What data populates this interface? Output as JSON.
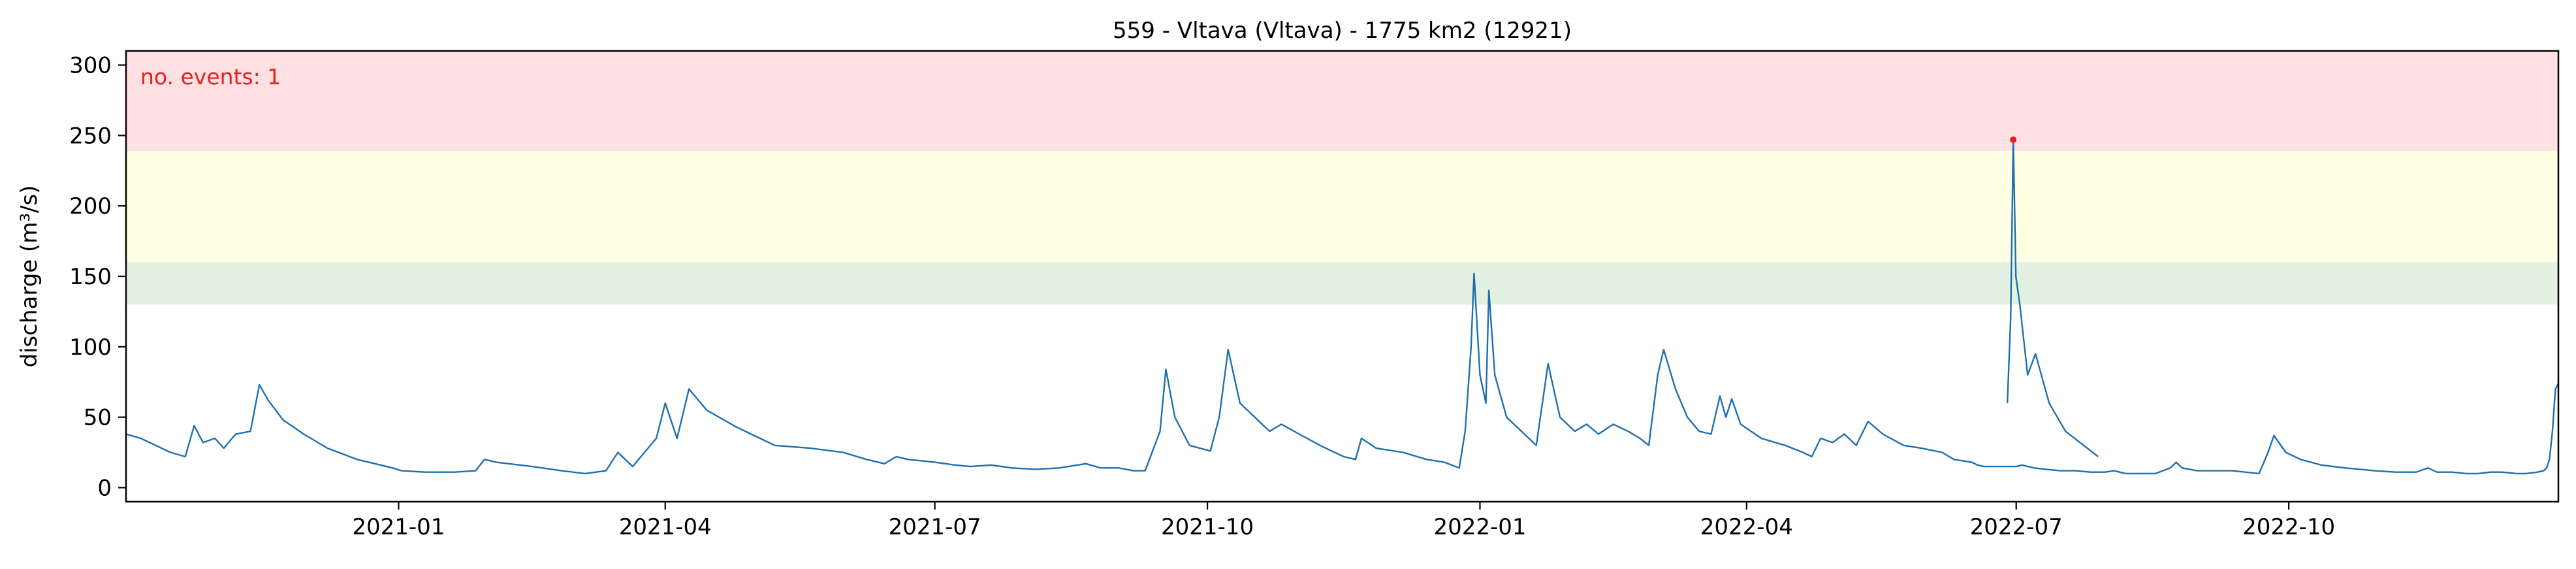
{
  "chart_data": {
    "type": "line",
    "title": "559 - Vltava (Vltava) - 1775 km2 (12921)",
    "xlabel": "",
    "ylabel": "discharge (m³/s)",
    "x_range": [
      "2020-10-01",
      "2022-12-31"
    ],
    "ylim": [
      -10,
      310
    ],
    "y_ticks": [
      0,
      50,
      100,
      150,
      200,
      250,
      300
    ],
    "x_ticks": [
      {
        "date": "2021-01-01",
        "label": "2021-01"
      },
      {
        "date": "2021-04-01",
        "label": "2021-04"
      },
      {
        "date": "2021-07-01",
        "label": "2021-07"
      },
      {
        "date": "2021-10-01",
        "label": "2021-10"
      },
      {
        "date": "2022-01-01",
        "label": "2022-01"
      },
      {
        "date": "2022-04-01",
        "label": "2022-04"
      },
      {
        "date": "2022-07-01",
        "label": "2022-07"
      },
      {
        "date": "2022-10-01",
        "label": "2022-10"
      }
    ],
    "grid": false,
    "bands": [
      {
        "from": 239,
        "to": 310,
        "color": "#ffe1e4"
      },
      {
        "from": 160,
        "to": 239,
        "color": "#ffffe3"
      },
      {
        "from": 130,
        "to": 160,
        "color": "#e3f1e2"
      }
    ],
    "annotation": {
      "text": "no. events: 1",
      "color": "#e8201e"
    },
    "events": [
      {
        "x": "2022-06-30",
        "y": 247,
        "color": "#e8201e"
      }
    ],
    "series": [
      {
        "color": "#1f6fb0",
        "points": [
          [
            "2020-10-01",
            38
          ],
          [
            "2020-10-06",
            35
          ],
          [
            "2020-10-11",
            30
          ],
          [
            "2020-10-16",
            25
          ],
          [
            "2020-10-21",
            22
          ],
          [
            "2020-10-24",
            44
          ],
          [
            "2020-10-27",
            32
          ],
          [
            "2020-10-31",
            35
          ],
          [
            "2020-11-03",
            28
          ],
          [
            "2020-11-07",
            38
          ],
          [
            "2020-11-12",
            40
          ],
          [
            "2020-11-15",
            73
          ],
          [
            "2020-11-18",
            62
          ],
          [
            "2020-11-23",
            48
          ],
          [
            "2020-11-30",
            38
          ],
          [
            "2020-12-08",
            28
          ],
          [
            "2020-12-18",
            20
          ],
          [
            "2020-12-26",
            16
          ],
          [
            "2020-12-30",
            14
          ],
          [
            "2021-01-02",
            12
          ],
          [
            "2021-01-10",
            11
          ],
          [
            "2021-01-20",
            11
          ],
          [
            "2021-01-27",
            12
          ],
          [
            "2021-01-30",
            20
          ],
          [
            "2021-02-03",
            18
          ],
          [
            "2021-02-15",
            15
          ],
          [
            "2021-02-25",
            12
          ],
          [
            "2021-03-05",
            10
          ],
          [
            "2021-03-12",
            12
          ],
          [
            "2021-03-16",
            25
          ],
          [
            "2021-03-21",
            15
          ],
          [
            "2021-03-29",
            35
          ],
          [
            "2021-04-01",
            60
          ],
          [
            "2021-04-05",
            35
          ],
          [
            "2021-04-09",
            70
          ],
          [
            "2021-04-15",
            55
          ],
          [
            "2021-04-25",
            43
          ],
          [
            "2021-05-03",
            35
          ],
          [
            "2021-05-08",
            30
          ],
          [
            "2021-05-20",
            28
          ],
          [
            "2021-05-31",
            25
          ],
          [
            "2021-06-08",
            20
          ],
          [
            "2021-06-14",
            17
          ],
          [
            "2021-06-18",
            22
          ],
          [
            "2021-06-22",
            20
          ],
          [
            "2021-07-01",
            18
          ],
          [
            "2021-07-08",
            16
          ],
          [
            "2021-07-13",
            15
          ],
          [
            "2021-07-20",
            16
          ],
          [
            "2021-07-27",
            14
          ],
          [
            "2021-08-04",
            13
          ],
          [
            "2021-08-12",
            14
          ],
          [
            "2021-08-21",
            17
          ],
          [
            "2021-08-26",
            14
          ],
          [
            "2021-09-01",
            14
          ],
          [
            "2021-09-06",
            12
          ],
          [
            "2021-09-10",
            12
          ],
          [
            "2021-09-15",
            40
          ],
          [
            "2021-09-17",
            84
          ],
          [
            "2021-09-20",
            50
          ],
          [
            "2021-09-25",
            30
          ],
          [
            "2021-10-02",
            26
          ],
          [
            "2021-10-05",
            50
          ],
          [
            "2021-10-08",
            98
          ],
          [
            "2021-10-12",
            60
          ],
          [
            "2021-10-17",
            50
          ],
          [
            "2021-10-22",
            40
          ],
          [
            "2021-10-26",
            45
          ],
          [
            "2021-11-01",
            38
          ],
          [
            "2021-11-08",
            30
          ],
          [
            "2021-11-16",
            22
          ],
          [
            "2021-11-20",
            20
          ],
          [
            "2021-11-22",
            35
          ],
          [
            "2021-11-27",
            28
          ],
          [
            "2021-12-06",
            25
          ],
          [
            "2021-12-14",
            20
          ],
          [
            "2021-12-20",
            18
          ],
          [
            "2021-12-25",
            14
          ],
          [
            "2021-12-27",
            40
          ],
          [
            "2021-12-29",
            100
          ],
          [
            "2021-12-30",
            152
          ],
          [
            "2022-01-01",
            80
          ],
          [
            "2022-01-03",
            60
          ],
          [
            "2022-01-04",
            140
          ],
          [
            "2022-01-06",
            80
          ],
          [
            "2022-01-10",
            50
          ],
          [
            "2022-01-15",
            40
          ],
          [
            "2022-01-20",
            30
          ],
          [
            "2022-01-24",
            88
          ],
          [
            "2022-01-28",
            50
          ],
          [
            "2022-02-02",
            40
          ],
          [
            "2022-02-06",
            45
          ],
          [
            "2022-02-10",
            38
          ],
          [
            "2022-02-15",
            45
          ],
          [
            "2022-02-20",
            40
          ],
          [
            "2022-02-24",
            35
          ],
          [
            "2022-02-27",
            30
          ],
          [
            "2022-03-02",
            80
          ],
          [
            "2022-03-04",
            98
          ],
          [
            "2022-03-08",
            70
          ],
          [
            "2022-03-12",
            50
          ],
          [
            "2022-03-16",
            40
          ],
          [
            "2022-03-20",
            38
          ],
          [
            "2022-03-23",
            65
          ],
          [
            "2022-03-25",
            50
          ],
          [
            "2022-03-27",
            63
          ],
          [
            "2022-03-30",
            45
          ],
          [
            "2022-04-06",
            35
          ],
          [
            "2022-04-14",
            30
          ],
          [
            "2022-04-20",
            25
          ],
          [
            "2022-04-23",
            22
          ],
          [
            "2022-04-26",
            35
          ],
          [
            "2022-04-30",
            32
          ],
          [
            "2022-05-04",
            38
          ],
          [
            "2022-05-08",
            30
          ],
          [
            "2022-05-12",
            47
          ],
          [
            "2022-05-17",
            38
          ],
          [
            "2022-05-24",
            30
          ],
          [
            "2022-05-30",
            28
          ],
          [
            "2022-06-06",
            25
          ],
          [
            "2022-06-10",
            20
          ],
          [
            "2022-06-16",
            18
          ],
          [
            "2022-06-18",
            16
          ],
          [
            "2022-06-20",
            15
          ],
          [
            "2022-06-24",
            15
          ],
          [
            "2022-06-27",
            15
          ],
          [
            "2022-07-01",
            15
          ],
          [
            "2022-07-03",
            16
          ],
          [
            "2022-07-07",
            14
          ],
          [
            "2022-07-11",
            13
          ],
          [
            "2022-07-16",
            12
          ],
          [
            "2022-07-21",
            12
          ],
          [
            "2022-07-26",
            11
          ],
          [
            "2022-07-31",
            11
          ],
          [
            "2022-08-03",
            12
          ],
          [
            "2022-08-07",
            10
          ],
          [
            "2022-08-12",
            10
          ],
          [
            "2022-08-17",
            10
          ],
          [
            "2022-08-22",
            14
          ],
          [
            "2022-08-24",
            18
          ],
          [
            "2022-08-26",
            14
          ],
          [
            "2022-08-31",
            12
          ],
          [
            "2022-09-05",
            12
          ],
          [
            "2022-09-12",
            12
          ],
          [
            "2022-09-21",
            10
          ],
          [
            "2022-09-24",
            25
          ],
          [
            "2022-09-26",
            37
          ],
          [
            "2022-09-30",
            25
          ],
          [
            "2022-10-05",
            20
          ],
          [
            "2022-10-12",
            16
          ],
          [
            "2022-10-20",
            14
          ],
          [
            "2022-10-30",
            12
          ],
          [
            "2022-11-06",
            11
          ],
          [
            "2022-11-13",
            11
          ],
          [
            "2022-11-17",
            14
          ],
          [
            "2022-11-20",
            11
          ],
          [
            "2022-11-25",
            11
          ],
          [
            "2022-11-30",
            10
          ],
          [
            "2022-12-04",
            10
          ],
          [
            "2022-12-08",
            11
          ],
          [
            "2022-12-12",
            11
          ],
          [
            "2022-12-17",
            10
          ],
          [
            "2022-12-20",
            10
          ],
          [
            "2022-12-24",
            11
          ],
          [
            "2022-12-26",
            12
          ],
          [
            "2022-12-27",
            14
          ],
          [
            "2022-12-28",
            20
          ],
          [
            "2022-12-29",
            40
          ],
          [
            "2022-12-30",
            70
          ],
          [
            "2022-12-31",
            74
          ]
        ]
      }
    ]
  }
}
